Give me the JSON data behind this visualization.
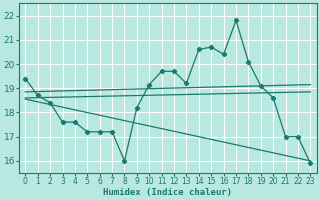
{
  "bg_color": "#b8e8e0",
  "line_color": "#1a7a6e",
  "grid_color": "#ffffff",
  "xlabel": "Humidex (Indice chaleur)",
  "ylim": [
    15.5,
    22.5
  ],
  "xlim": [
    -0.5,
    23.5
  ],
  "yticks": [
    16,
    17,
    18,
    19,
    20,
    21,
    22
  ],
  "xticks": [
    0,
    1,
    2,
    3,
    4,
    5,
    6,
    7,
    8,
    9,
    10,
    11,
    12,
    13,
    14,
    15,
    16,
    17,
    18,
    19,
    20,
    21,
    22,
    23
  ],
  "main_x": [
    0,
    1,
    2,
    3,
    4,
    5,
    6,
    7,
    8,
    9,
    10,
    11,
    12,
    13,
    14,
    15,
    16,
    17,
    18,
    19,
    20,
    21,
    22,
    23
  ],
  "main_y": [
    19.4,
    18.7,
    18.4,
    17.6,
    17.6,
    17.2,
    17.2,
    17.2,
    16.0,
    18.2,
    19.15,
    19.7,
    19.7,
    19.2,
    20.6,
    20.7,
    20.4,
    21.8,
    20.1,
    19.1,
    18.6,
    17.0,
    17.0,
    15.9
  ],
  "trend1_x": [
    0,
    23
  ],
  "trend1_y": [
    18.85,
    19.15
  ],
  "trend2_x": [
    0,
    23
  ],
  "trend2_y": [
    18.6,
    18.85
  ],
  "trend3_x": [
    0,
    23
  ],
  "trend3_y": [
    18.55,
    16.0
  ]
}
